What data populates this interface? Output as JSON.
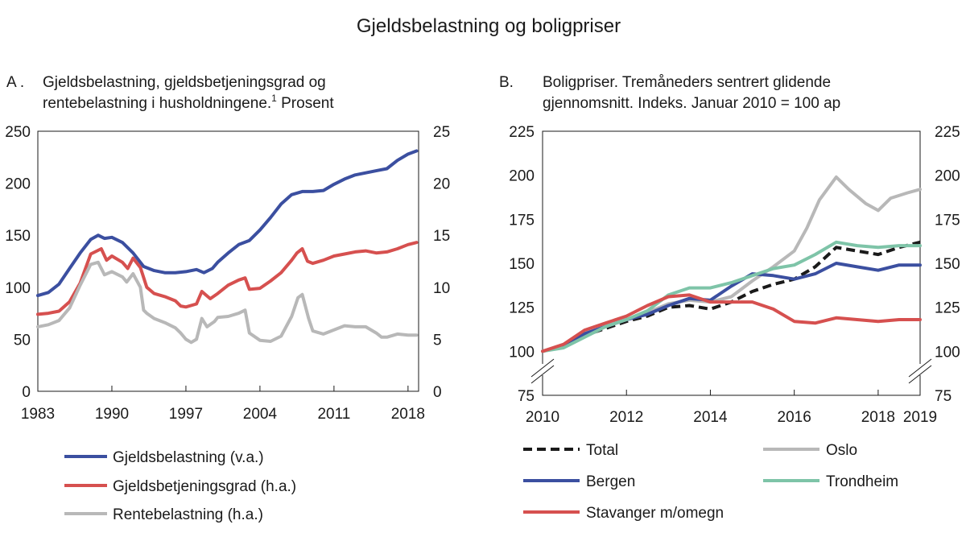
{
  "title": "Gjeldsbelastning og boligpriser",
  "chart_data": [
    {
      "type": "line",
      "panel_label": "A .",
      "title_lines": [
        "Gjeldsbelastning, gjeldsbetjeningsgrad og",
        "rentebelastning i husholdningene."
      ],
      "title_superscript": "1",
      "title_suffix": " Prosent",
      "x_ticks": [
        "1983",
        "1990",
        "1997",
        "2004",
        "2011",
        "2018"
      ],
      "xlim": [
        1983,
        2019
      ],
      "y_left": {
        "ticks": [
          "250",
          "200",
          "150",
          "100",
          "50",
          "0"
        ],
        "lim": [
          0,
          250
        ]
      },
      "y_right": {
        "ticks": [
          "25",
          "20",
          "15",
          "10",
          "5",
          "0"
        ],
        "lim": [
          0,
          25
        ]
      },
      "series": [
        {
          "name": "Gjeldsbelastning (v.a.)",
          "axis": "left",
          "color": "#3b4fa0",
          "x": [
            1983,
            1984,
            1985,
            1986,
            1987,
            1988,
            1988.7,
            1989.3,
            1990,
            1991,
            1992,
            1993,
            1994,
            1995,
            1996,
            1997,
            1998,
            1998.7,
            1999.5,
            2000,
            2001,
            2002,
            2003,
            2004,
            2005,
            2006,
            2007,
            2008,
            2009,
            2010,
            2011,
            2012,
            2013,
            2014,
            2015,
            2016,
            2017,
            2018,
            2018.8
          ],
          "y": [
            92,
            95,
            103,
            118,
            133,
            146,
            150,
            147,
            148,
            143,
            133,
            120,
            116,
            114,
            114,
            115,
            117,
            114,
            118,
            124,
            133,
            141,
            145,
            155,
            167,
            180,
            189,
            192,
            192,
            193,
            199,
            204,
            208,
            210,
            212,
            214,
            222,
            228,
            231
          ]
        },
        {
          "name": "Gjeldsbetjeningsgrad (h.a.)",
          "axis": "right",
          "color": "#d6504f",
          "x": [
            1983,
            1984,
            1985,
            1986,
            1987,
            1988,
            1989,
            1989.5,
            1990,
            1991,
            1991.5,
            1992,
            1992.7,
            1993.3,
            1994,
            1995,
            1996,
            1996.5,
            1997,
            1998,
            1998.5,
            1999.3,
            2000,
            2001,
            2002,
            2002.6,
            2003,
            2004,
            2005,
            2006,
            2007,
            2007.5,
            2008,
            2008.5,
            2009,
            2010,
            2011,
            2012,
            2013,
            2014,
            2015,
            2016,
            2017,
            2018,
            2018.8
          ],
          "y": [
            7.4,
            7.5,
            7.7,
            8.6,
            10.4,
            13.2,
            13.7,
            12.6,
            13.0,
            12.4,
            11.8,
            12.8,
            11.9,
            10.0,
            9.4,
            9.1,
            8.7,
            8.2,
            8.1,
            8.4,
            9.6,
            8.9,
            9.4,
            10.2,
            10.7,
            10.9,
            9.8,
            9.9,
            10.6,
            11.4,
            12.6,
            13.3,
            13.7,
            12.5,
            12.3,
            12.6,
            13.0,
            13.2,
            13.4,
            13.5,
            13.3,
            13.4,
            13.7,
            14.1,
            14.3
          ]
        },
        {
          "name": "Rentebelastning (h.a.)",
          "axis": "right",
          "color": "#b8b8b8",
          "x": [
            1983,
            1984,
            1985,
            1986,
            1987,
            1988,
            1988.7,
            1989.3,
            1990,
            1991,
            1991.4,
            1992,
            1992.7,
            1993,
            1993.3,
            1994,
            1995,
            1996,
            1996.5,
            1997,
            1997.5,
            1998,
            1998.5,
            1999,
            1999.7,
            2000,
            2001,
            2002,
            2002.6,
            2003,
            2004,
            2005,
            2006,
            2007,
            2007.6,
            2008,
            2008.6,
            2009,
            2010,
            2011,
            2012,
            2013,
            2014,
            2015,
            2015.5,
            2016,
            2017,
            2018,
            2018.8
          ],
          "y": [
            6.2,
            6.4,
            6.8,
            8.0,
            10.2,
            12.2,
            12.4,
            11.2,
            11.5,
            11.0,
            10.5,
            11.3,
            10.0,
            7.8,
            7.5,
            7.0,
            6.6,
            6.1,
            5.6,
            5.0,
            4.7,
            5.0,
            7.0,
            6.2,
            6.7,
            7.1,
            7.2,
            7.5,
            7.8,
            5.6,
            4.9,
            4.8,
            5.3,
            7.2,
            9.0,
            9.3,
            7.0,
            5.8,
            5.5,
            5.9,
            6.3,
            6.2,
            6.2,
            5.6,
            5.2,
            5.2,
            5.5,
            5.4,
            5.4
          ]
        }
      ]
    },
    {
      "type": "line",
      "panel_label": "B.",
      "title_lines": [
        "Boligpriser. Tremåneders sentrert glidende",
        "gjennomsnitt. Indeks. Januar 2010 = 100 ap"
      ],
      "x_ticks": [
        "2010",
        "2012",
        "2014",
        "2016",
        "2018",
        "2019"
      ],
      "xlim": [
        2010,
        2019
      ],
      "y_left": {
        "ticks": [
          "225",
          "200",
          "175",
          "150",
          "125",
          "100",
          "75"
        ],
        "lim": [
          75,
          225
        ]
      },
      "y_right": {
        "ticks": [
          "225",
          "200",
          "175",
          "150",
          "125",
          "100",
          "75"
        ],
        "lim": [
          75,
          225
        ]
      },
      "series": [
        {
          "name": "Total",
          "color": "#1a1a1a",
          "dashed": true,
          "x": [
            2010,
            2010.5,
            2011,
            2011.5,
            2012,
            2012.5,
            2013,
            2013.5,
            2014,
            2014.5,
            2015,
            2015.5,
            2016,
            2016.5,
            2017,
            2017.5,
            2018,
            2018.5,
            2019
          ],
          "y": [
            100,
            103,
            109,
            113,
            117,
            120,
            125,
            126,
            124,
            128,
            134,
            138,
            141,
            148,
            159,
            157,
            155,
            159,
            162
          ]
        },
        {
          "name": "Oslo",
          "color": "#b8b8b8",
          "x": [
            2010,
            2010.5,
            2011,
            2011.5,
            2012,
            2012.5,
            2013,
            2013.5,
            2014,
            2014.5,
            2015,
            2015.5,
            2016,
            2016.3,
            2016.6,
            2017,
            2017.3,
            2017.7,
            2018,
            2018.3,
            2018.7,
            2019
          ],
          "y": [
            100,
            103,
            110,
            114,
            118,
            122,
            127,
            129,
            128,
            131,
            140,
            148,
            157,
            170,
            186,
            199,
            192,
            184,
            180,
            187,
            190,
            192
          ]
        },
        {
          "name": "Bergen",
          "color": "#3b4fa0",
          "x": [
            2010,
            2010.5,
            2011,
            2011.5,
            2012,
            2012.5,
            2013,
            2013.5,
            2014,
            2014.5,
            2015,
            2015.5,
            2016,
            2016.5,
            2017,
            2017.5,
            2018,
            2018.5,
            2019
          ],
          "y": [
            100,
            103,
            110,
            114,
            118,
            121,
            126,
            130,
            129,
            137,
            144,
            143,
            141,
            144,
            150,
            148,
            146,
            149,
            149
          ]
        },
        {
          "name": "Trondheim",
          "color": "#7ec4a8",
          "x": [
            2010,
            2010.5,
            2011,
            2011.5,
            2012,
            2012.5,
            2013,
            2013.5,
            2014,
            2014.5,
            2015,
            2015.5,
            2016,
            2016.5,
            2017,
            2017.5,
            2018,
            2018.5,
            2019
          ],
          "y": [
            100,
            102,
            108,
            114,
            118,
            123,
            132,
            136,
            136,
            139,
            143,
            147,
            149,
            155,
            162,
            160,
            159,
            160,
            160
          ]
        },
        {
          "name": "Stavanger m/omegn",
          "color": "#d6504f",
          "x": [
            2010,
            2010.5,
            2011,
            2011.5,
            2012,
            2012.5,
            2013,
            2013.5,
            2014,
            2014.5,
            2015,
            2015.5,
            2016,
            2016.5,
            2017,
            2017.5,
            2018,
            2018.5,
            2019
          ],
          "y": [
            100,
            104,
            112,
            116,
            120,
            126,
            131,
            132,
            128,
            128,
            128,
            124,
            117,
            116,
            119,
            118,
            117,
            118,
            118
          ]
        }
      ]
    }
  ]
}
